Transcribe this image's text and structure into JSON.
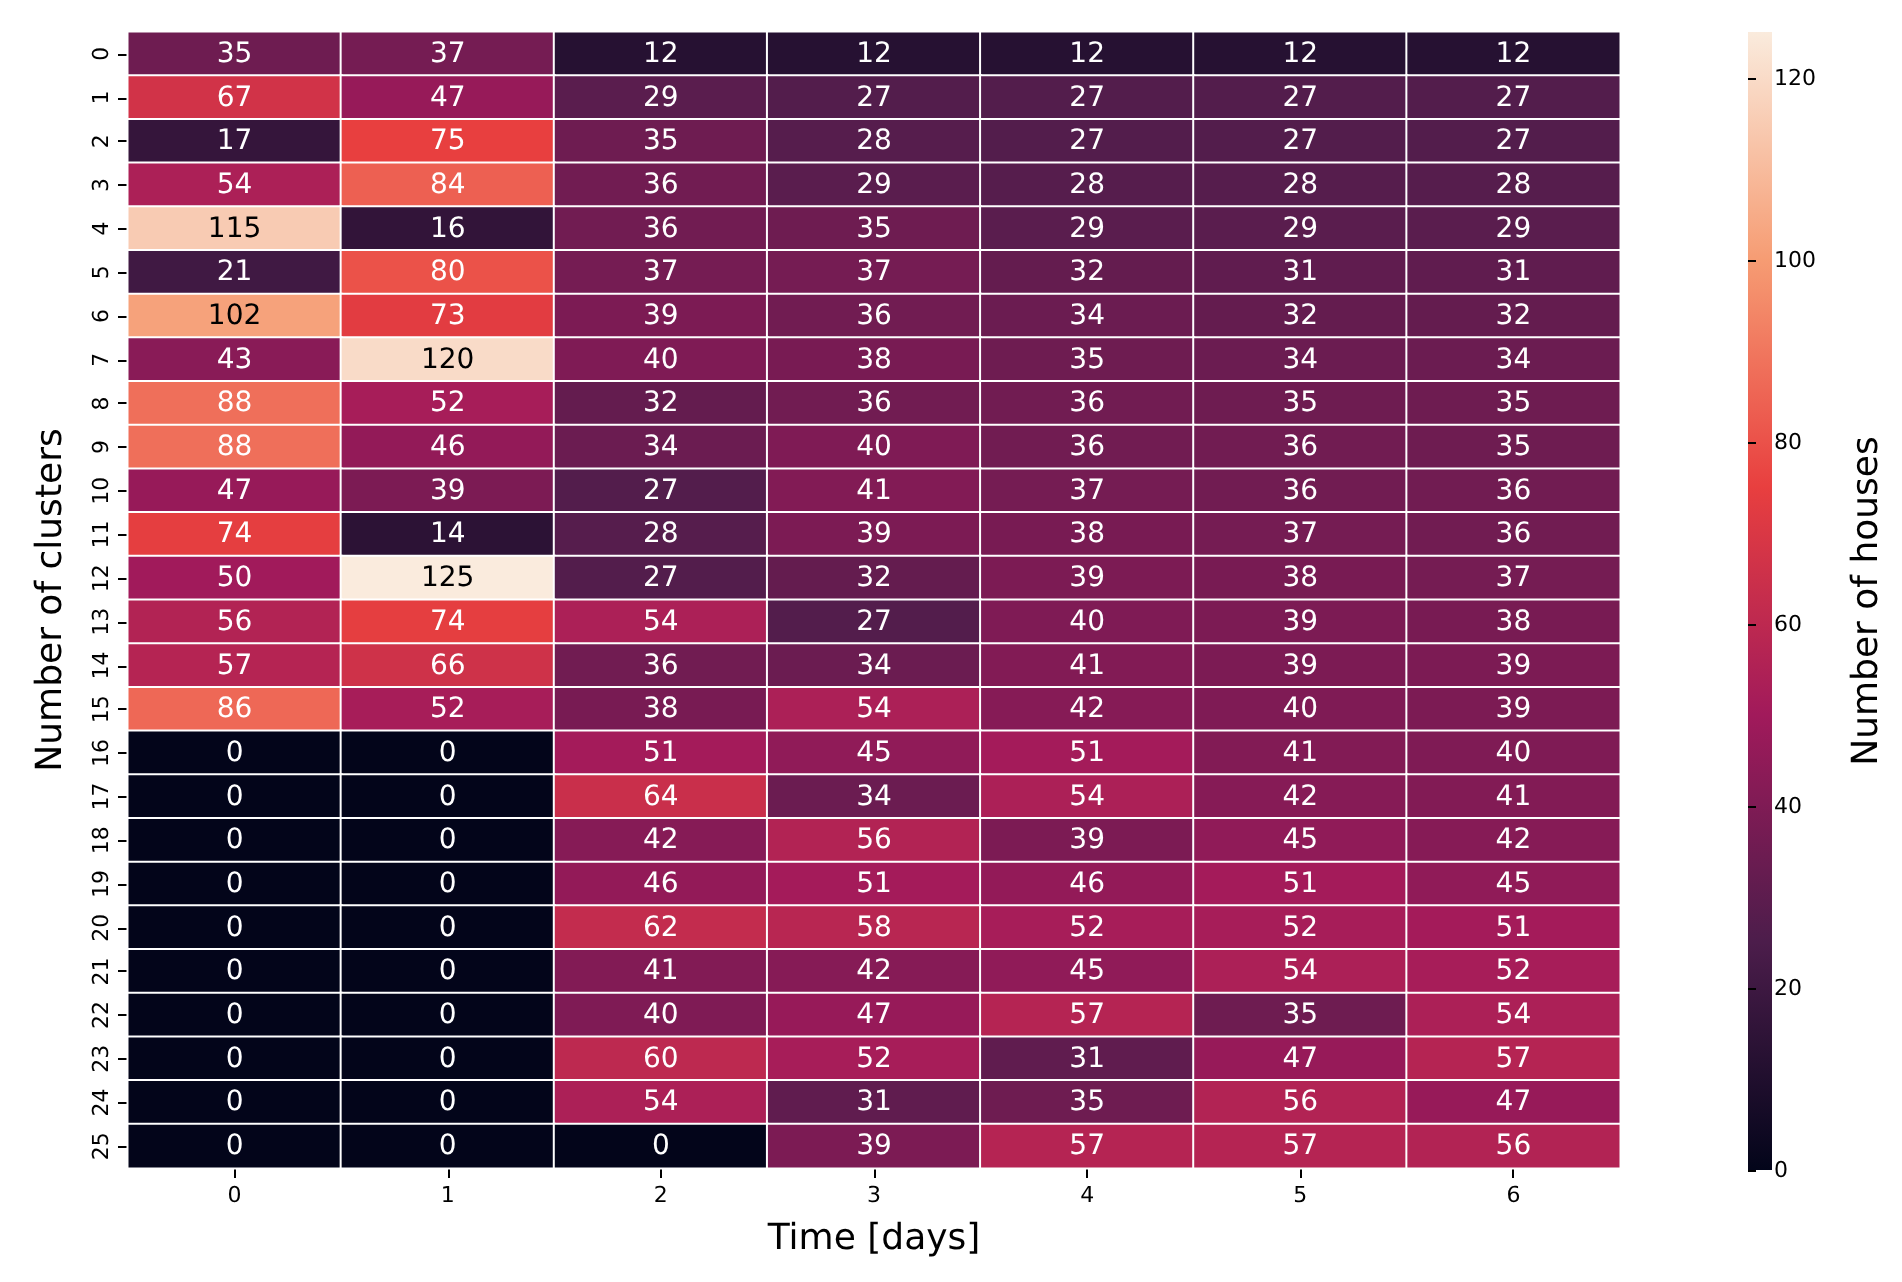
{
  "chart_data": {
    "type": "heatmap",
    "xlabel": "Time [days]",
    "ylabel": "Number of clusters",
    "clabel": "Number of houses",
    "categories": [
      "0",
      "1",
      "2",
      "3",
      "4",
      "5",
      "6"
    ],
    "y_categories": [
      "0",
      "1",
      "2",
      "3",
      "4",
      "5",
      "6",
      "7",
      "8",
      "9",
      "10",
      "11",
      "12",
      "13",
      "14",
      "15",
      "16",
      "17",
      "18",
      "19",
      "20",
      "21",
      "22",
      "23",
      "24",
      "25"
    ],
    "cells": [
      [
        35,
        37,
        12,
        12,
        12,
        12,
        12
      ],
      [
        67,
        47,
        29,
        27,
        27,
        27,
        27
      ],
      [
        17,
        75,
        35,
        28,
        27,
        27,
        27
      ],
      [
        54,
        84,
        36,
        29,
        28,
        28,
        28
      ],
      [
        115,
        16,
        36,
        35,
        29,
        29,
        29
      ],
      [
        21,
        80,
        37,
        37,
        32,
        31,
        31
      ],
      [
        102,
        73,
        39,
        36,
        34,
        32,
        32
      ],
      [
        43,
        120,
        40,
        38,
        35,
        34,
        34
      ],
      [
        88,
        52,
        32,
        36,
        36,
        35,
        35
      ],
      [
        88,
        46,
        34,
        40,
        36,
        36,
        35
      ],
      [
        47,
        39,
        27,
        41,
        37,
        36,
        36
      ],
      [
        74,
        14,
        28,
        39,
        38,
        37,
        36
      ],
      [
        50,
        125,
        27,
        32,
        39,
        38,
        37
      ],
      [
        56,
        74,
        54,
        27,
        40,
        39,
        38
      ],
      [
        57,
        66,
        36,
        34,
        41,
        39,
        39
      ],
      [
        86,
        52,
        38,
        54,
        42,
        40,
        39
      ],
      [
        0,
        0,
        51,
        45,
        51,
        41,
        40
      ],
      [
        0,
        0,
        64,
        34,
        54,
        42,
        41
      ],
      [
        0,
        0,
        42,
        56,
        39,
        45,
        42
      ],
      [
        0,
        0,
        46,
        51,
        46,
        51,
        45
      ],
      [
        0,
        0,
        62,
        58,
        52,
        52,
        51
      ],
      [
        0,
        0,
        41,
        42,
        45,
        54,
        52
      ],
      [
        0,
        0,
        40,
        47,
        57,
        35,
        54
      ],
      [
        0,
        0,
        60,
        52,
        31,
        47,
        57
      ],
      [
        0,
        0,
        54,
        31,
        35,
        56,
        47
      ],
      [
        0,
        0,
        0,
        39,
        57,
        57,
        56
      ]
    ],
    "data_labels": true,
    "clim": [
      0,
      125
    ],
    "cticks": [
      0,
      20,
      40,
      60,
      80,
      100,
      120
    ]
  }
}
